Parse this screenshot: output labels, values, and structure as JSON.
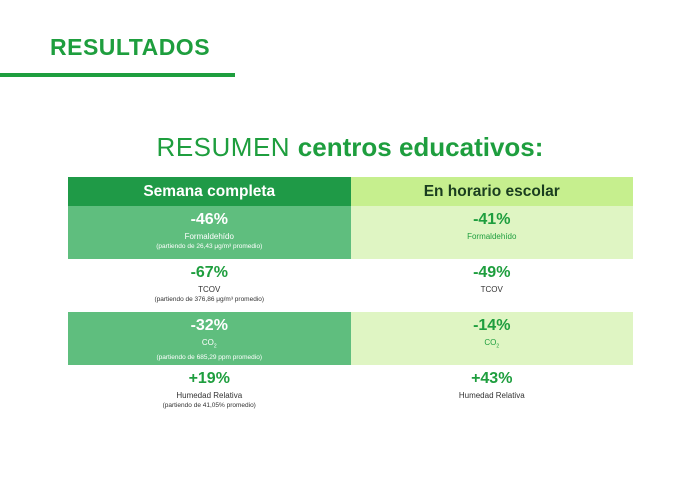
{
  "header": {
    "title": "RESULTADOS"
  },
  "subtitle": {
    "light": "RESUMEN ",
    "bold": "centros educativos:"
  },
  "table": {
    "columns": [
      "Semana completa",
      "En horario escolar"
    ],
    "rows": [
      {
        "full": {
          "value": "-46%",
          "label": "Formaldehído",
          "note": "(partiendo de 26,43 μg/m³ promedio)"
        },
        "school": {
          "value": "-41%",
          "label": "Formaldehído"
        }
      },
      {
        "full": {
          "value": "-67%",
          "label": "TCOV",
          "note": "(partiendo de 376,86 μg/m³ promedio)"
        },
        "school": {
          "value": "-49%",
          "label": "TCOV"
        }
      },
      {
        "full": {
          "value": "-32%",
          "label": "CO",
          "label_sub": "2",
          "note": "(partiendo de 685,29 ppm promedio)"
        },
        "school": {
          "value": "-14%",
          "label": "CO",
          "label_sub": "2"
        }
      },
      {
        "full": {
          "value": "+19%",
          "label": "Humedad Relativa",
          "note": "(partiendo de 41,05% promedio)"
        },
        "school": {
          "value": "+43%",
          "label": "Humedad Relativa"
        }
      }
    ]
  },
  "colors": {
    "accent": "#1e9e3e",
    "header_dark": "#1f9a47",
    "header_light": "#c6ef8e",
    "row_dark": "#5fbe7e",
    "row_light": "#dff5c3"
  }
}
